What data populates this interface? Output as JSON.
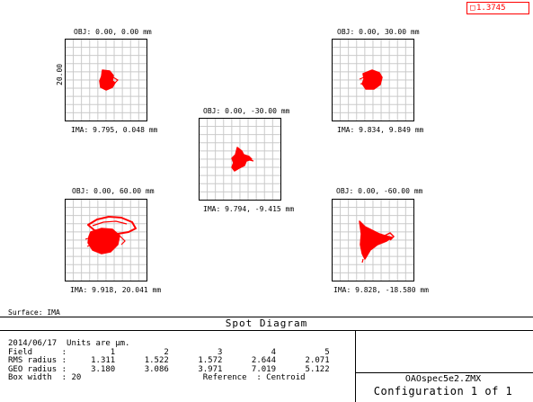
{
  "legend": {
    "marker": "□",
    "value": "1.3745"
  },
  "scale_label": "20.00",
  "fields": [
    {
      "obj": "OBJ: 0.00, 0.00 mm",
      "ima": "IMA: 9.795, 0.048 mm"
    },
    {
      "obj": "OBJ: 0.00, 30.00 mm",
      "ima": "IMA: 9.834, 9.849 mm"
    },
    {
      "obj": "OBJ: 0.00, -30.00 mm",
      "ima": "IMA: 9.794, -9.415 mm"
    },
    {
      "obj": "OBJ: 0.00, 60.00 mm",
      "ima": "IMA: 9.918, 20.041 mm"
    },
    {
      "obj": "OBJ: 0.00, -60.00 mm",
      "ima": "IMA: 9.828, -18.580 mm"
    }
  ],
  "surface": "Surface: IMA",
  "title": "Spot Diagram",
  "info": {
    "line1": "2014/06/17  Units are µm.",
    "line2": "Field      :         1          2          3          4          5",
    "line3": "RMS radius :     1.311      1.522      1.572      2.644      2.071",
    "line4": "GEO radius :     3.180      3.086      3.971      7.019      5.122",
    "line5": "Box width  : 20                         Reference  : Centroid"
  },
  "file_name": "OAOspec5e2.ZMX",
  "config": "Configuration 1 of 1",
  "colors": {
    "spot": "#ff0000",
    "grid": "#c8c8c8"
  }
}
